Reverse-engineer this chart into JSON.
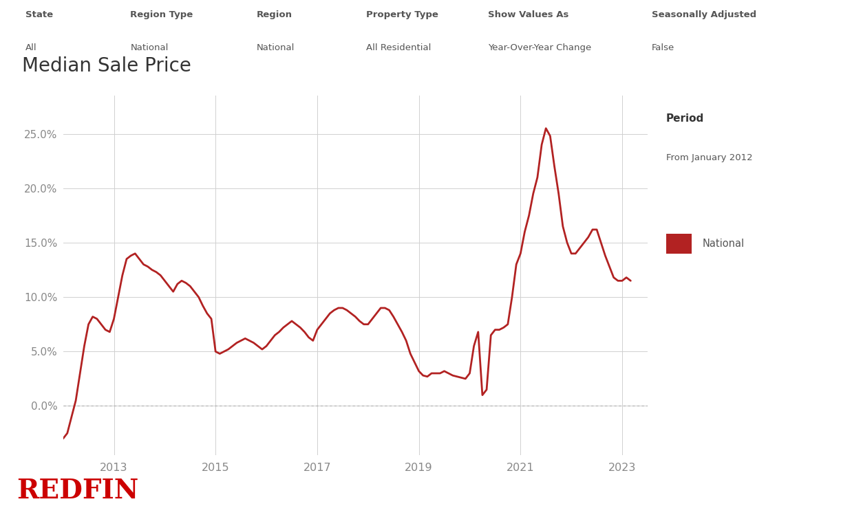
{
  "title": "Median Sale Price",
  "line_color": "#b22222",
  "legend_color": "#b22222",
  "background_color": "#ffffff",
  "grid_color": "#d0d0d0",
  "zero_line_color": "#aaaaaa",
  "header_labels": [
    {
      "label": "State",
      "value": "All"
    },
    {
      "label": "Region Type",
      "value": "National"
    },
    {
      "label": "Region",
      "value": "National"
    },
    {
      "label": "Property Type",
      "value": "All Residential"
    },
    {
      "label": "Show Values As",
      "value": "Year-Over-Year Change"
    },
    {
      "label": "Seasonally Adjusted",
      "value": "False"
    }
  ],
  "period_title": "Period",
  "period_value": "From January 2012",
  "legend_label": "National",
  "redfin_text": "REDFIN",
  "redfin_color": "#cc0000",
  "ylim": [
    -0.045,
    0.285
  ],
  "yticks": [
    0.0,
    0.05,
    0.1,
    0.15,
    0.2,
    0.25
  ],
  "xlim": [
    2012.0,
    2023.5
  ],
  "xticks": [
    2013,
    2015,
    2017,
    2019,
    2021,
    2023
  ],
  "x_data": [
    2012.0,
    2012.083,
    2012.167,
    2012.25,
    2012.333,
    2012.417,
    2012.5,
    2012.583,
    2012.667,
    2012.75,
    2012.833,
    2012.917,
    2013.0,
    2013.083,
    2013.167,
    2013.25,
    2013.333,
    2013.417,
    2013.5,
    2013.583,
    2013.667,
    2013.75,
    2013.833,
    2013.917,
    2014.0,
    2014.083,
    2014.167,
    2014.25,
    2014.333,
    2014.417,
    2014.5,
    2014.583,
    2014.667,
    2014.75,
    2014.833,
    2014.917,
    2015.0,
    2015.083,
    2015.167,
    2015.25,
    2015.333,
    2015.417,
    2015.5,
    2015.583,
    2015.667,
    2015.75,
    2015.833,
    2015.917,
    2016.0,
    2016.083,
    2016.167,
    2016.25,
    2016.333,
    2016.417,
    2016.5,
    2016.583,
    2016.667,
    2016.75,
    2016.833,
    2016.917,
    2017.0,
    2017.083,
    2017.167,
    2017.25,
    2017.333,
    2017.417,
    2017.5,
    2017.583,
    2017.667,
    2017.75,
    2017.833,
    2017.917,
    2018.0,
    2018.083,
    2018.167,
    2018.25,
    2018.333,
    2018.417,
    2018.5,
    2018.583,
    2018.667,
    2018.75,
    2018.833,
    2018.917,
    2019.0,
    2019.083,
    2019.167,
    2019.25,
    2019.333,
    2019.417,
    2019.5,
    2019.583,
    2019.667,
    2019.75,
    2019.833,
    2019.917,
    2020.0,
    2020.083,
    2020.167,
    2020.25,
    2020.333,
    2020.417,
    2020.5,
    2020.583,
    2020.667,
    2020.75,
    2020.833,
    2020.917,
    2021.0,
    2021.083,
    2021.167,
    2021.25,
    2021.333,
    2021.417,
    2021.5,
    2021.583,
    2021.667,
    2021.75,
    2021.833,
    2021.917,
    2022.0,
    2022.083,
    2022.167,
    2022.25,
    2022.333,
    2022.417,
    2022.5,
    2022.583,
    2022.667,
    2022.75,
    2022.833,
    2022.917,
    2023.0,
    2023.083,
    2023.167
  ],
  "y_data": [
    -0.03,
    -0.025,
    -0.01,
    0.005,
    0.03,
    0.055,
    0.075,
    0.082,
    0.08,
    0.075,
    0.07,
    0.068,
    0.08,
    0.1,
    0.12,
    0.135,
    0.138,
    0.14,
    0.135,
    0.13,
    0.128,
    0.125,
    0.123,
    0.12,
    0.115,
    0.11,
    0.105,
    0.112,
    0.115,
    0.113,
    0.11,
    0.105,
    0.1,
    0.092,
    0.085,
    0.08,
    0.05,
    0.048,
    0.05,
    0.052,
    0.055,
    0.058,
    0.06,
    0.062,
    0.06,
    0.058,
    0.055,
    0.052,
    0.055,
    0.06,
    0.065,
    0.068,
    0.072,
    0.075,
    0.078,
    0.075,
    0.072,
    0.068,
    0.063,
    0.06,
    0.07,
    0.075,
    0.08,
    0.085,
    0.088,
    0.09,
    0.09,
    0.088,
    0.085,
    0.082,
    0.078,
    0.075,
    0.075,
    0.08,
    0.085,
    0.09,
    0.09,
    0.088,
    0.082,
    0.075,
    0.068,
    0.06,
    0.048,
    0.04,
    0.032,
    0.028,
    0.027,
    0.03,
    0.03,
    0.03,
    0.032,
    0.03,
    0.028,
    0.027,
    0.026,
    0.025,
    0.03,
    0.055,
    0.068,
    0.01,
    0.015,
    0.065,
    0.07,
    0.07,
    0.072,
    0.075,
    0.1,
    0.13,
    0.14,
    0.16,
    0.175,
    0.195,
    0.21,
    0.24,
    0.255,
    0.248,
    0.22,
    0.195,
    0.165,
    0.15,
    0.14,
    0.14,
    0.145,
    0.15,
    0.155,
    0.162,
    0.162,
    0.15,
    0.138,
    0.128,
    0.118,
    0.115,
    0.115,
    0.118,
    0.115
  ]
}
